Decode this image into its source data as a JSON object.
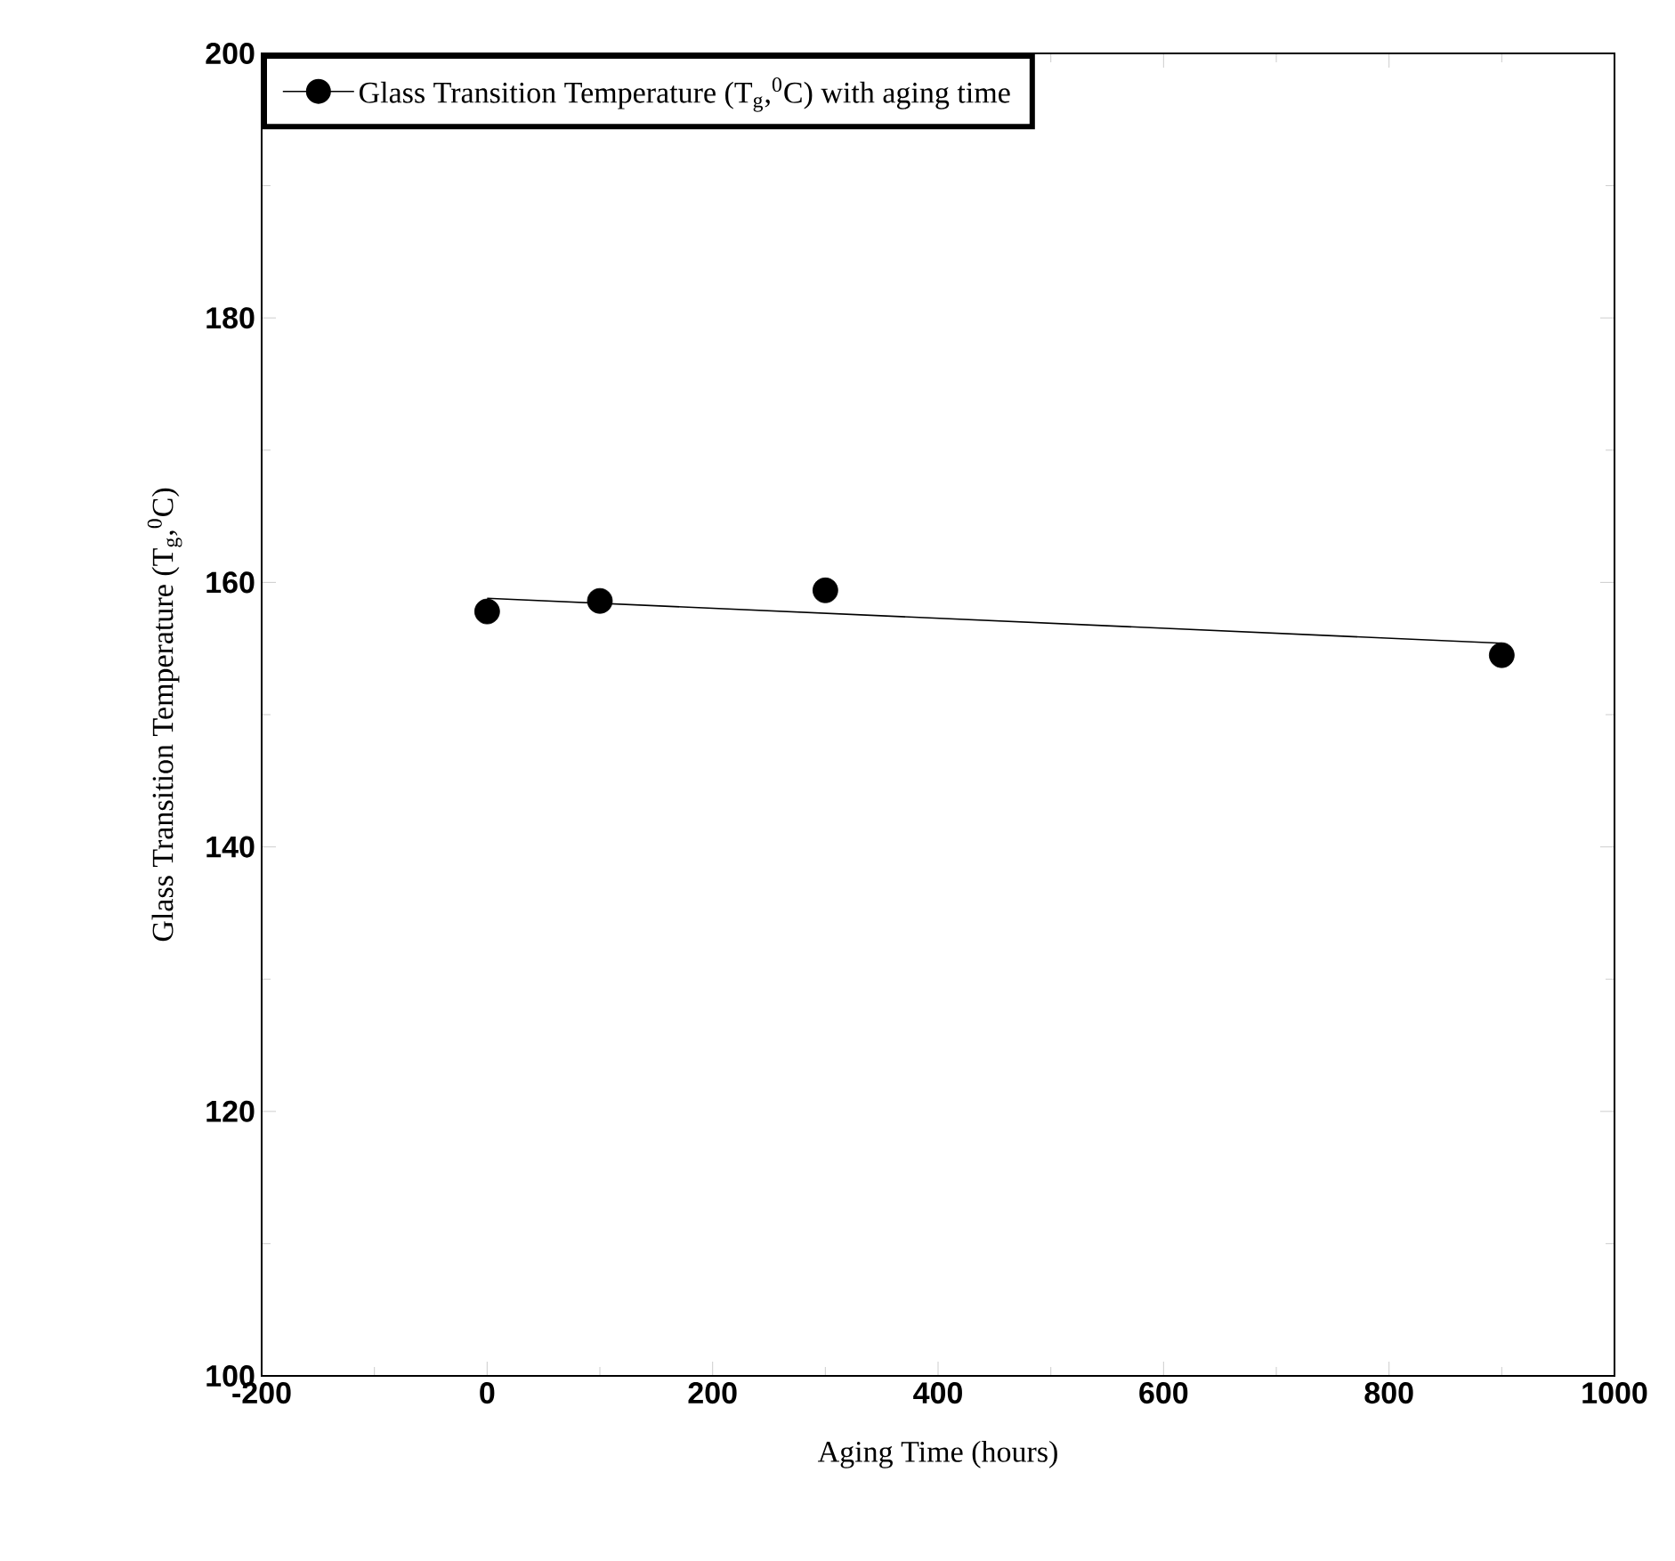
{
  "chart_data": {
    "type": "scatter",
    "xlabel": "Aging Time (hours)",
    "ylabel": "Glass Transition Temperature (T$_{g}$,$^{0}$C)",
    "xlim": [
      -200,
      1000
    ],
    "xticks": [
      -200,
      0,
      200,
      400,
      600,
      800,
      1000
    ],
    "ylim": [
      100,
      200
    ],
    "yticks": [
      100,
      120,
      140,
      160,
      180,
      200
    ],
    "legend": "top left",
    "grid": false,
    "marker": "circle",
    "series": [
      {
        "name": "Glass Transition Temperature (T$_{g}$,$^{0}$C) with aging time",
        "color": "#000000",
        "x": [
          0,
          100,
          300,
          900
        ],
        "values": [
          157.8,
          158.6,
          159.4,
          154.5
        ]
      },
      {
        "type": "line",
        "color": "#000000",
        "line_style": "solid",
        "marker": "none",
        "x": [
          0,
          900
        ],
        "values": [
          158.8,
          155.4
        ]
      }
    ]
  }
}
